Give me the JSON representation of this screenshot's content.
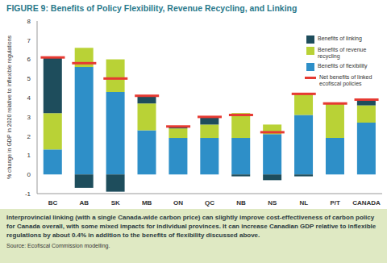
{
  "chart_data": {
    "type": "bar",
    "title": "FIGURE 9: Benefits of Policy Flexibility, Revenue Recycling, and Linking",
    "y_label": "% change in GDP in 2020 relative to inflexible regulations",
    "categories": [
      "BC",
      "AB",
      "SK",
      "MB",
      "ON",
      "QC",
      "NB",
      "NS",
      "NL",
      "P/T",
      "CANADA"
    ],
    "series": [
      {
        "name": "Benefits of flexibility",
        "color": "#2e8fc8",
        "type": "bar",
        "values": [
          1.3,
          5.6,
          4.3,
          2.3,
          1.9,
          1.9,
          1.9,
          2.1,
          3.1,
          1.9,
          2.7
        ]
      },
      {
        "name": "Benefits of revenue recycling",
        "color": "#b9d236",
        "type": "bar",
        "values": [
          1.9,
          1.0,
          1.7,
          1.4,
          0.5,
          0.7,
          1.3,
          0.5,
          1.1,
          1.8,
          0.9
        ]
      },
      {
        "name": "Benefits of linking",
        "color": "#1e4d5c",
        "type": "bar",
        "values": [
          2.9,
          -0.7,
          -0.9,
          0.4,
          0.1,
          0.4,
          -0.1,
          -0.3,
          -0.1,
          0,
          0.3
        ]
      },
      {
        "name": "Net benefits of linked ecofiscal policies",
        "color": "#e63a32",
        "type": "scatter",
        "marker": "hline",
        "values": [
          6.1,
          5.8,
          5.0,
          4.1,
          2.5,
          3.0,
          3.1,
          2.2,
          4.2,
          3.7,
          3.9
        ]
      }
    ],
    "stacked": true,
    "ylim": [
      -1,
      8
    ],
    "yticks": [
      -1,
      0,
      1,
      2,
      3,
      4,
      5,
      6,
      7,
      8
    ],
    "grid": false,
    "legend": "top-right",
    "caption": "Interprovincial linking (with a single Canada-wide carbon price) can slightly improve cost-effectiveness of carbon policy for Canada overall, with some mixed impacts for individual provinces. It can increase Canadian GDP relative to inflexible regulations by about 0.4% in addition to the benefits of flexibility discussed above.",
    "source": "Source: Ecofiscal Commission modelling."
  }
}
